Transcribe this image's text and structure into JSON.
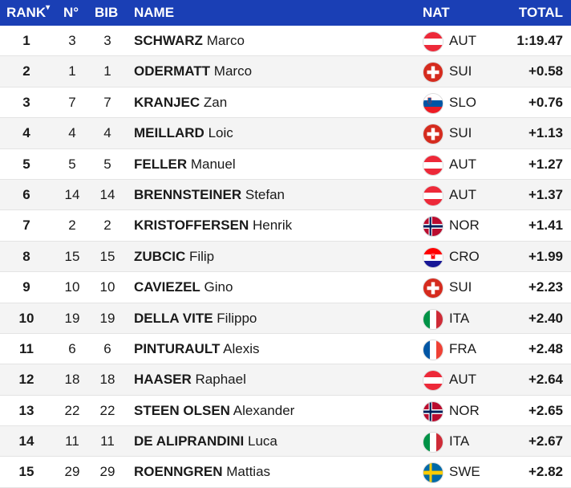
{
  "header": {
    "rank": "RANK",
    "sort_indicator": "▾",
    "no": "N°",
    "bib": "BIB",
    "name": "NAME",
    "nat": "NAT",
    "total": "TOTAL"
  },
  "rows": [
    {
      "rank": "1",
      "no": "3",
      "bib": "3",
      "last": "SCHWARZ",
      "first": "Marco",
      "nat": "AUT",
      "total": "1:19.47"
    },
    {
      "rank": "2",
      "no": "1",
      "bib": "1",
      "last": "ODERMATT",
      "first": "Marco",
      "nat": "SUI",
      "total": "+0.58"
    },
    {
      "rank": "3",
      "no": "7",
      "bib": "7",
      "last": "KRANJEC",
      "first": "Zan",
      "nat": "SLO",
      "total": "+0.76"
    },
    {
      "rank": "4",
      "no": "4",
      "bib": "4",
      "last": "MEILLARD",
      "first": "Loic",
      "nat": "SUI",
      "total": "+1.13"
    },
    {
      "rank": "5",
      "no": "5",
      "bib": "5",
      "last": "FELLER",
      "first": "Manuel",
      "nat": "AUT",
      "total": "+1.27"
    },
    {
      "rank": "6",
      "no": "14",
      "bib": "14",
      "last": "BRENNSTEINER",
      "first": "Stefan",
      "nat": "AUT",
      "total": "+1.37"
    },
    {
      "rank": "7",
      "no": "2",
      "bib": "2",
      "last": "KRISTOFFERSEN",
      "first": "Henrik",
      "nat": "NOR",
      "total": "+1.41"
    },
    {
      "rank": "8",
      "no": "15",
      "bib": "15",
      "last": "ZUBCIC",
      "first": "Filip",
      "nat": "CRO",
      "total": "+1.99"
    },
    {
      "rank": "9",
      "no": "10",
      "bib": "10",
      "last": "CAVIEZEL",
      "first": "Gino",
      "nat": "SUI",
      "total": "+2.23"
    },
    {
      "rank": "10",
      "no": "19",
      "bib": "19",
      "last": "DELLA VITE",
      "first": "Filippo",
      "nat": "ITA",
      "total": "+2.40"
    },
    {
      "rank": "11",
      "no": "6",
      "bib": "6",
      "last": "PINTURAULT",
      "first": "Alexis",
      "nat": "FRA",
      "total": "+2.48"
    },
    {
      "rank": "12",
      "no": "18",
      "bib": "18",
      "last": "HAASER",
      "first": "Raphael",
      "nat": "AUT",
      "total": "+2.64"
    },
    {
      "rank": "13",
      "no": "22",
      "bib": "22",
      "last": "STEEN OLSEN",
      "first": "Alexander",
      "nat": "NOR",
      "total": "+2.65"
    },
    {
      "rank": "14",
      "no": "11",
      "bib": "11",
      "last": "DE ALIPRANDINI",
      "first": "Luca",
      "nat": "ITA",
      "total": "+2.67"
    },
    {
      "rank": "15",
      "no": "29",
      "bib": "29",
      "last": "ROENNGREN",
      "first": "Mattias",
      "nat": "SWE",
      "total": "+2.82"
    }
  ],
  "colors": {
    "header_bg": "#1a3fb5",
    "header_text": "#ffffff"
  }
}
